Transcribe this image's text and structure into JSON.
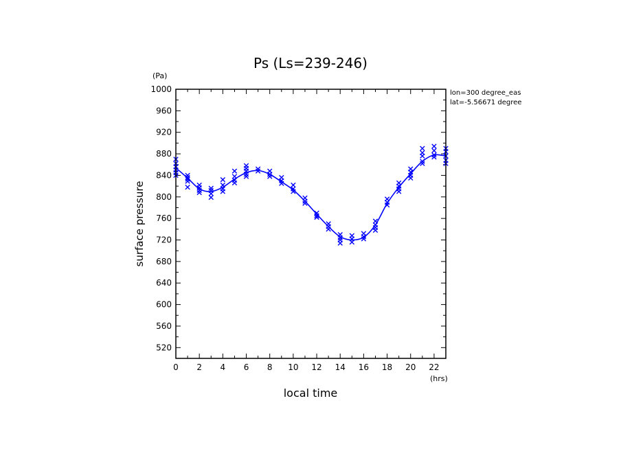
{
  "chart_data": {
    "type": "line",
    "title": "Ps (Ls=239-246)",
    "xlabel": "local time",
    "ylabel": "surface pressure",
    "xunit": "(hrs)",
    "yunit": "(Pa)",
    "annotation_lines": [
      "lon=300 degree_eas",
      "lat=-5.56671 degree"
    ],
    "xlim": [
      0,
      23
    ],
    "ylim": [
      500,
      1000
    ],
    "x_ticks": [
      0,
      2,
      4,
      6,
      8,
      10,
      12,
      14,
      16,
      18,
      20,
      22
    ],
    "y_ticks": [
      520,
      560,
      600,
      640,
      680,
      720,
      760,
      800,
      840,
      880,
      920,
      960,
      1000
    ],
    "grid": false,
    "series_color": "#0000ff",
    "series": [
      {
        "name": "",
        "type": "line",
        "x": [
          0,
          1,
          2,
          3,
          4,
          5,
          6,
          7,
          8,
          9,
          10,
          11,
          12,
          13,
          14,
          15,
          16,
          17,
          18,
          19,
          20,
          21,
          22,
          23
        ],
        "values": [
          854,
          835,
          815,
          810,
          818,
          833,
          845,
          849,
          842,
          828,
          813,
          792,
          768,
          745,
          726,
          720,
          725,
          748,
          788,
          818,
          843,
          866,
          878,
          876
        ]
      },
      {
        "name": "",
        "type": "scatter",
        "marker": "x",
        "points": [
          [
            0,
            870
          ],
          [
            0,
            862
          ],
          [
            0,
            856
          ],
          [
            0,
            850
          ],
          [
            0,
            845
          ],
          [
            0,
            840
          ],
          [
            1,
            840
          ],
          [
            1,
            836
          ],
          [
            1,
            833
          ],
          [
            1,
            829
          ],
          [
            1,
            818
          ],
          [
            2,
            822
          ],
          [
            2,
            817
          ],
          [
            2,
            812
          ],
          [
            2,
            808
          ],
          [
            3,
            816
          ],
          [
            3,
            812
          ],
          [
            3,
            806
          ],
          [
            3,
            799
          ],
          [
            4,
            832
          ],
          [
            4,
            822
          ],
          [
            4,
            815
          ],
          [
            4,
            810
          ],
          [
            5,
            848
          ],
          [
            5,
            838
          ],
          [
            5,
            831
          ],
          [
            5,
            826
          ],
          [
            6,
            858
          ],
          [
            6,
            853
          ],
          [
            6,
            848
          ],
          [
            6,
            842
          ],
          [
            6,
            838
          ],
          [
            7,
            852
          ],
          [
            7,
            848
          ],
          [
            8,
            848
          ],
          [
            8,
            842
          ],
          [
            8,
            838
          ],
          [
            9,
            836
          ],
          [
            9,
            830
          ],
          [
            9,
            825
          ],
          [
            10,
            822
          ],
          [
            10,
            815
          ],
          [
            10,
            810
          ],
          [
            11,
            798
          ],
          [
            11,
            792
          ],
          [
            11,
            788
          ],
          [
            12,
            770
          ],
          [
            12,
            765
          ],
          [
            12,
            762
          ],
          [
            13,
            750
          ],
          [
            13,
            745
          ],
          [
            13,
            740
          ],
          [
            14,
            730
          ],
          [
            14,
            724
          ],
          [
            14,
            720
          ],
          [
            14,
            714
          ],
          [
            15,
            728
          ],
          [
            15,
            722
          ],
          [
            15,
            716
          ],
          [
            16,
            732
          ],
          [
            16,
            726
          ],
          [
            16,
            722
          ],
          [
            17,
            755
          ],
          [
            17,
            748
          ],
          [
            17,
            743
          ],
          [
            17,
            738
          ],
          [
            18,
            796
          ],
          [
            18,
            790
          ],
          [
            18,
            785
          ],
          [
            19,
            826
          ],
          [
            19,
            820
          ],
          [
            19,
            815
          ],
          [
            19,
            810
          ],
          [
            20,
            852
          ],
          [
            20,
            846
          ],
          [
            20,
            840
          ],
          [
            20,
            835
          ],
          [
            21,
            890
          ],
          [
            21,
            882
          ],
          [
            21,
            876
          ],
          [
            21,
            866
          ],
          [
            21,
            862
          ],
          [
            22,
            894
          ],
          [
            22,
            886
          ],
          [
            22,
            878
          ],
          [
            22,
            874
          ],
          [
            23,
            890
          ],
          [
            23,
            884
          ],
          [
            23,
            876
          ],
          [
            23,
            868
          ],
          [
            23,
            862
          ]
        ]
      }
    ]
  }
}
